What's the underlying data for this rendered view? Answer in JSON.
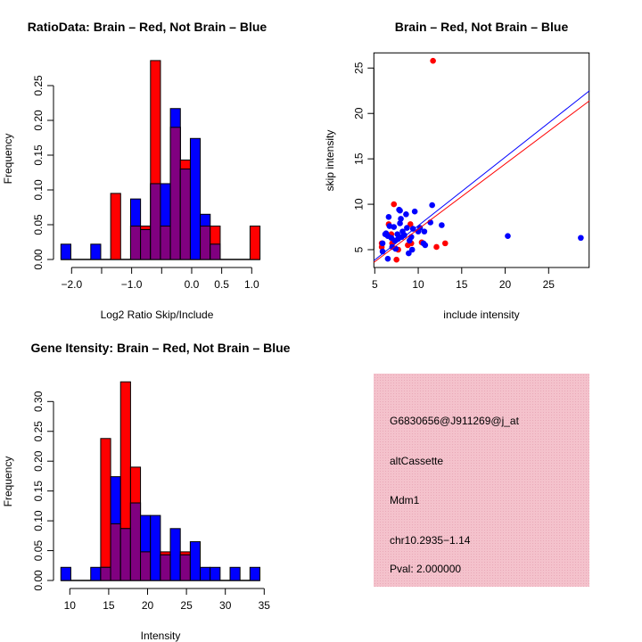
{
  "chart_data": [
    {
      "type": "bar",
      "id": "ratio_hist",
      "title": "RatioData: Brain – Red, Not Brain – Blue",
      "xlabel": "Log2 Ratio Skip/Include",
      "ylabel": "Frequency",
      "bin_start": -2.178,
      "bin_width": 0.1658,
      "xlim": [
        -2.25,
        1.25
      ],
      "ylim": [
        0,
        0.29
      ],
      "x_ticks": [
        -2.0,
        -1.5,
        -1.0,
        -0.5,
        0.0,
        0.5,
        1.0
      ],
      "x_tick_labels": [
        "−2.0",
        "",
        "−1.0",
        "",
        "0.0",
        "0.5",
        "1.0"
      ],
      "y_ticks": [
        0,
        0.05,
        0.1,
        0.15,
        0.2,
        0.25
      ],
      "y_tick_labels": [
        "0.00",
        "0.05",
        "0.10",
        "0.15",
        "0.20",
        "0.25"
      ],
      "series": [
        {
          "name": "Brain",
          "color": "#ff0000",
          "values": [
            0,
            0,
            0,
            0,
            0,
            0.095,
            0,
            0.048,
            0.048,
            0.286,
            0.048,
            0.19,
            0.143,
            0,
            0.048,
            0.048,
            0,
            0,
            0,
            0.048
          ]
        },
        {
          "name": "Not Brain",
          "color": "#0000ff",
          "values": [
            0.022,
            0,
            0,
            0.022,
            0,
            0,
            0,
            0.087,
            0.043,
            0.109,
            0.109,
            0.217,
            0.13,
            0.174,
            0.065,
            0.022,
            0,
            0,
            0,
            0
          ]
        }
      ],
      "overlap_color": "#800080"
    },
    {
      "type": "scatter",
      "id": "scatter",
      "title": "Brain – Red, Not Brain – Blue",
      "xlabel": "include intensity",
      "ylabel": "skip intensity",
      "xlim": [
        4.9,
        29.7
      ],
      "ylim": [
        3.1,
        26.7
      ],
      "x_ticks": [
        5,
        10,
        15,
        20,
        25
      ],
      "x_tick_labels": [
        "5",
        "10",
        "15",
        "20",
        "25"
      ],
      "y_ticks": [
        5,
        10,
        15,
        20,
        25
      ],
      "y_tick_labels": [
        "5",
        "10",
        "15",
        "20",
        "25"
      ],
      "series": [
        {
          "name": "Brain",
          "color": "#ff0000",
          "points": [
            [
              11.7,
              25.8
            ],
            [
              7.2,
              10
            ],
            [
              7.5,
              3.9
            ],
            [
              12.1,
              5.3
            ],
            [
              13.1,
              5.7
            ],
            [
              5.8,
              5.7
            ],
            [
              5.8,
              5.3
            ],
            [
              6.6,
              7.8
            ],
            [
              9.1,
              7.8
            ],
            [
              8.8,
              5.5
            ],
            [
              9.2,
              5.7
            ],
            [
              10.4,
              5.8
            ],
            [
              7.0,
              5.7
            ],
            [
              7.7,
              5.0
            ],
            [
              6.9,
              6.7
            ]
          ],
          "fit": [
            [
              4.9,
              3.6
            ],
            [
              29.7,
              21.4
            ]
          ]
        },
        {
          "name": "Not Brain",
          "color": "#0000ff",
          "points": [
            [
              5.9,
              5.7
            ],
            [
              5.9,
              4.8
            ],
            [
              6.5,
              4.0
            ],
            [
              6.6,
              8.6
            ],
            [
              6.7,
              7.6
            ],
            [
              6.3,
              6.8
            ],
            [
              6.5,
              6.5
            ],
            [
              6.9,
              6.3
            ],
            [
              7.2,
              7.5
            ],
            [
              7.0,
              5.3
            ],
            [
              7.4,
              5.1
            ],
            [
              7.6,
              6.7
            ],
            [
              7.7,
              6.2
            ],
            [
              7.8,
              9.4
            ],
            [
              7.9,
              9.3
            ],
            [
              8.0,
              8.4
            ],
            [
              7.9,
              7.9
            ],
            [
              8.2,
              7.0
            ],
            [
              8.4,
              6.6
            ],
            [
              8.6,
              8.9
            ],
            [
              8.7,
              7.4
            ],
            [
              8.9,
              4.6
            ],
            [
              9.0,
              6.0
            ],
            [
              9.2,
              6.4
            ],
            [
              9.3,
              5.0
            ],
            [
              9.6,
              9.2
            ],
            [
              9.4,
              7.3
            ],
            [
              10.0,
              7.0
            ],
            [
              10.2,
              7.4
            ],
            [
              10.6,
              5.7
            ],
            [
              10.8,
              5.5
            ],
            [
              10.7,
              7.0
            ],
            [
              11.4,
              8.0
            ],
            [
              11.6,
              9.9
            ],
            [
              12.7,
              7.7
            ],
            [
              20.3,
              6.5
            ],
            [
              28.7,
              6.3
            ],
            [
              7.3,
              6.0
            ],
            [
              8.1,
              6.4
            ],
            [
              6.2,
              6.7
            ]
          ],
          "fit": [
            [
              4.9,
              3.8
            ],
            [
              29.7,
              22.5
            ]
          ]
        }
      ]
    },
    {
      "type": "bar",
      "id": "intensity_hist",
      "title": "Gene Itensity: Brain – Red, Not Brain – Blue",
      "xlabel": "Intensity",
      "ylabel": "Frequency",
      "bin_start": 8.85,
      "bin_width": 1.28,
      "xlim": [
        8.0,
        36.0
      ],
      "ylim": [
        0,
        0.34
      ],
      "x_ticks": [
        10,
        15,
        20,
        25,
        30,
        35
      ],
      "x_tick_labels": [
        "10",
        "15",
        "20",
        "25",
        "30",
        "35"
      ],
      "y_ticks": [
        0,
        0.05,
        0.1,
        0.15,
        0.2,
        0.25,
        0.3
      ],
      "y_tick_labels": [
        "0.00",
        "0.05",
        "0.10",
        "0.15",
        "0.20",
        "0.25",
        "0.30"
      ],
      "series": [
        {
          "name": "Brain",
          "color": "#ff0000",
          "values": [
            0,
            0,
            0,
            0,
            0.238,
            0.095,
            0.333,
            0.19,
            0.048,
            0,
            0.048,
            0,
            0.048,
            0,
            0,
            0,
            0,
            0,
            0,
            0
          ]
        },
        {
          "name": "Not Brain",
          "color": "#0000ff",
          "values": [
            0.022,
            0,
            0,
            0.022,
            0.022,
            0.174,
            0.087,
            0.13,
            0.109,
            0.109,
            0.043,
            0.087,
            0.043,
            0.065,
            0.022,
            0.022,
            0,
            0.022,
            0,
            0.022
          ]
        }
      ],
      "overlap_color": "#800080"
    }
  ],
  "info_panel": {
    "background": "#f4c2cc",
    "probe_id": "G6830656@J911269@j_at",
    "event_type": "altCassette",
    "gene": "Mdm1",
    "location": "chr10.2935−1.14",
    "pval": "Pval: 2.000000",
    "pval_color": "#990000"
  }
}
